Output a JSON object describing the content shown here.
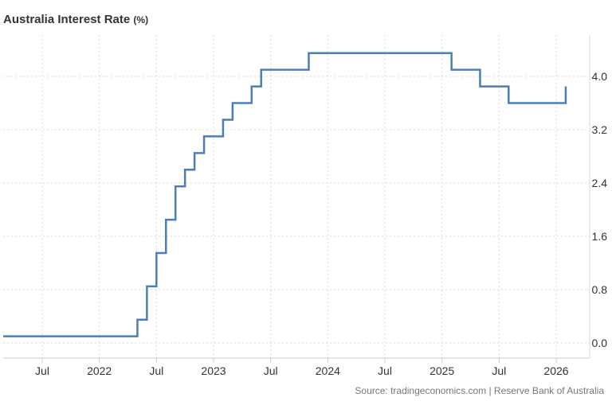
{
  "title": "Australia Interest Rate",
  "title_unit": "(%)",
  "source": "Source: tradingeconomics.com | Reserve Bank of Australia",
  "colors": {
    "line": "#4a7ebb",
    "grid": "#d9d9d9",
    "axis": "#cccccc"
  },
  "chart_data": {
    "type": "line",
    "step": true,
    "x_start": "2021-03",
    "x_end": "2026-03",
    "x_ticks": [
      {
        "label": "Jul",
        "x": "2021-07"
      },
      {
        "label": "2022",
        "x": "2022-01"
      },
      {
        "label": "Jul",
        "x": "2022-07"
      },
      {
        "label": "2023",
        "x": "2023-01"
      },
      {
        "label": "Jul",
        "x": "2023-07"
      },
      {
        "label": "2024",
        "x": "2024-01"
      },
      {
        "label": "Jul",
        "x": "2024-07"
      },
      {
        "label": "2025",
        "x": "2025-01"
      },
      {
        "label": "Jul",
        "x": "2025-07"
      },
      {
        "label": "2026",
        "x": "2026-01"
      }
    ],
    "y_ticks": [
      "0.0",
      "0.8",
      "1.6",
      "2.4",
      "3.2",
      "4.0"
    ],
    "ylim": [
      -0.2,
      4.6
    ],
    "grid": true,
    "series": [
      {
        "points": [
          [
            "2021-03",
            0.1
          ],
          [
            "2022-05",
            0.35
          ],
          [
            "2022-06",
            0.85
          ],
          [
            "2022-07",
            1.35
          ],
          [
            "2022-08",
            1.85
          ],
          [
            "2022-09",
            2.35
          ],
          [
            "2022-10",
            2.6
          ],
          [
            "2022-11",
            2.85
          ],
          [
            "2022-12",
            3.1
          ],
          [
            "2023-02",
            3.35
          ],
          [
            "2023-03",
            3.6
          ],
          [
            "2023-05",
            3.85
          ],
          [
            "2023-06",
            4.1
          ],
          [
            "2023-11",
            4.35
          ],
          [
            "2025-02",
            4.1
          ],
          [
            "2025-05",
            3.85
          ],
          [
            "2025-08",
            3.6
          ],
          [
            "2026-02",
            3.85
          ]
        ]
      }
    ]
  }
}
